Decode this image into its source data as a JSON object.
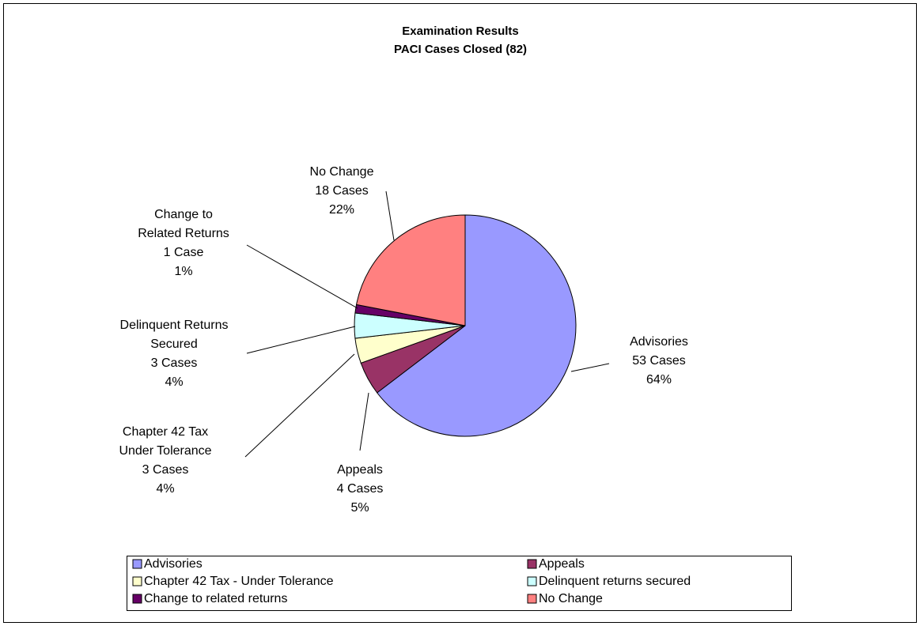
{
  "chart_data": {
    "type": "pie",
    "title": "Examination Results",
    "subtitle": "PACI Cases Closed (82)",
    "categories": [
      "Advisories",
      "Appeals",
      "Chapter 42 Tax - Under Tolerance",
      "Delinquent returns secured",
      "Change to related returns",
      "No Change"
    ],
    "label_names": [
      [
        "Advisories"
      ],
      [
        "Appeals"
      ],
      [
        "Chapter 42 Tax",
        "Under Tolerance"
      ],
      [
        "Delinquent Returns",
        "Secured"
      ],
      [
        "Change to",
        "Related Returns"
      ],
      [
        "No Change"
      ]
    ],
    "values": [
      53,
      4,
      3,
      3,
      1,
      18
    ],
    "value_labels": [
      "53 Cases",
      "4 Cases",
      "3 Cases",
      "3 Cases",
      "1 Case",
      "18 Cases"
    ],
    "percents": [
      64,
      5,
      4,
      4,
      1,
      22
    ],
    "percent_labels": [
      "64%",
      "5%",
      "4%",
      "4%",
      "1%",
      "22%"
    ],
    "colors": [
      "#9999ff",
      "#993366",
      "#ffffcc",
      "#ccffff",
      "#660066",
      "#ff8080"
    ],
    "legend": "bottom"
  }
}
